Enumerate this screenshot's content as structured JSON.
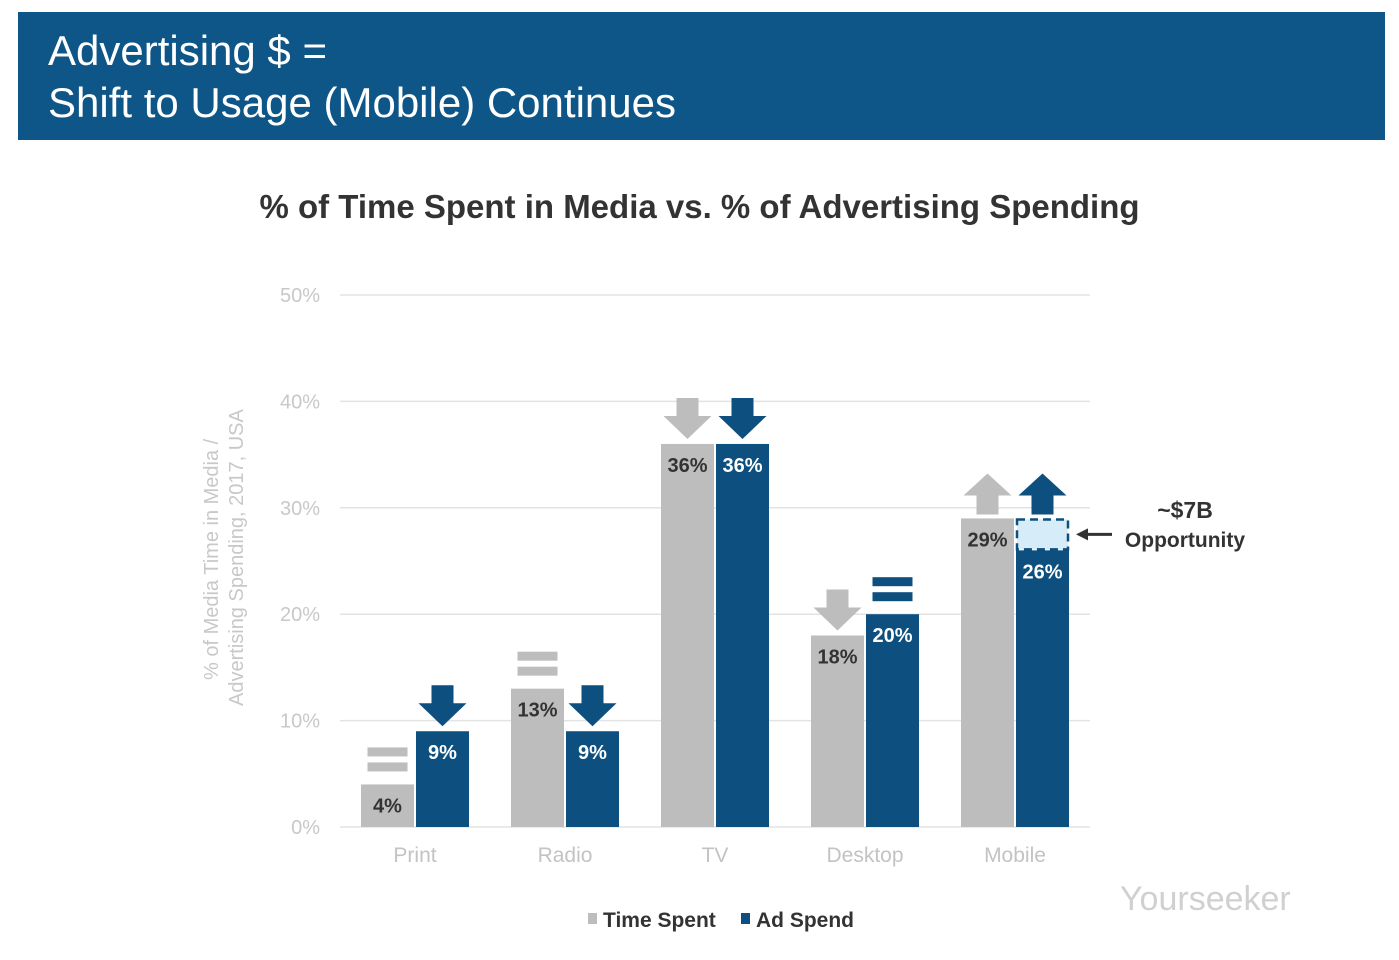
{
  "header": {
    "line1": "Advertising $ =",
    "line2": "Shift to Usage (Mobile) Continues"
  },
  "colors": {
    "header_bg": "#0e5687",
    "time_spent": "#bdbdbd",
    "ad_spend": "#0d4f7e",
    "opportunity_fill": "#d6ecf8"
  },
  "chart_data": {
    "type": "bar",
    "title": "% of Time Spent in Media vs. % of Advertising Spending",
    "ylabel": "% of Media Time in Media / Advertising Spending, 2017, USA",
    "ylim": [
      0,
      50
    ],
    "yticks": [
      "0%",
      "10%",
      "20%",
      "30%",
      "40%",
      "50%"
    ],
    "grid": true,
    "legend_placement": "bottom",
    "categories": [
      "Print",
      "Radio",
      "TV",
      "Desktop",
      "Mobile"
    ],
    "series": [
      {
        "name": "Time Spent",
        "values": [
          4,
          13,
          36,
          18,
          29
        ],
        "labels": [
          "4%",
          "13%",
          "36%",
          "18%",
          "29%"
        ],
        "trend": [
          "flat",
          "flat",
          "down",
          "down",
          "up"
        ]
      },
      {
        "name": "Ad Spend",
        "values": [
          9,
          9,
          36,
          20,
          26
        ],
        "labels": [
          "9%",
          "9%",
          "36%",
          "20%",
          "26%"
        ],
        "trend": [
          "down",
          "down",
          "down",
          "flat",
          "up"
        ]
      }
    ],
    "annotation": {
      "line1": "~$7B",
      "line2": "Opportunity",
      "category": "Mobile",
      "from": 26,
      "to": 29
    }
  },
  "watermark": "Yourseeker"
}
